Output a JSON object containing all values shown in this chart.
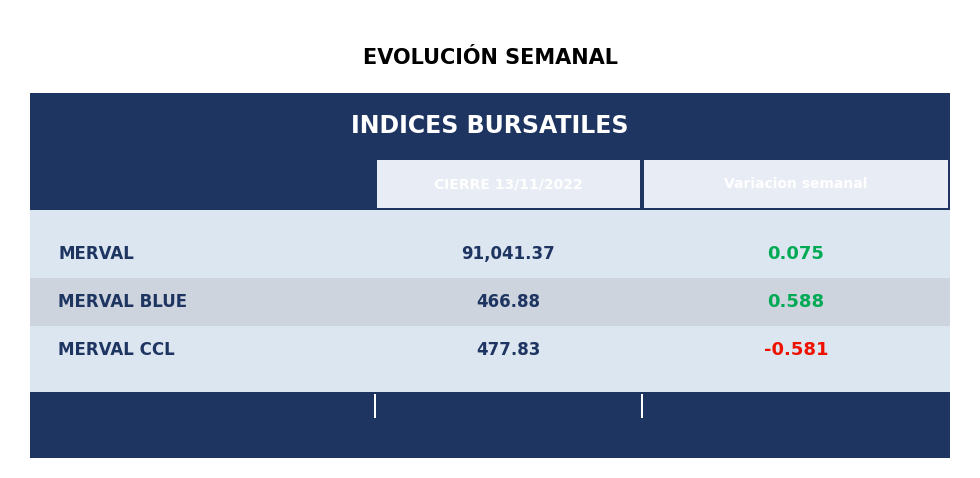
{
  "title": "EVOLUCIÓN SEMANAL",
  "table_header": "INDICES BURSATILES",
  "col_headers": [
    "",
    "CIERRE 13/11/2022",
    "Variacion semanal"
  ],
  "rows": [
    {
      "label": "MERVAL",
      "value": "91,041.37",
      "var": "0.075",
      "var_color": "#00aa55"
    },
    {
      "label": "MERVAL BLUE",
      "value": "466.88",
      "var": "0.588",
      "var_color": "#00aa55"
    },
    {
      "label": "MERVAL CCL",
      "value": "477.83",
      "var": "-0.581",
      "var_color": "#ee1100"
    }
  ],
  "dark_bg": "#1e3461",
  "row_bg_light": "#dce6f1",
  "row_bg_mid": "#cdd4de",
  "col_header_inner_bg": "#e8edf5",
  "title_color": "#000000",
  "header_text_color": "#ffffff",
  "col_header_text_color": "#ffffff",
  "row_label_color": "#1e3461",
  "row_value_color": "#1e3461",
  "bg_color": "#ffffff",
  "fig_w": 9.8,
  "fig_h": 4.78,
  "dpi": 100
}
